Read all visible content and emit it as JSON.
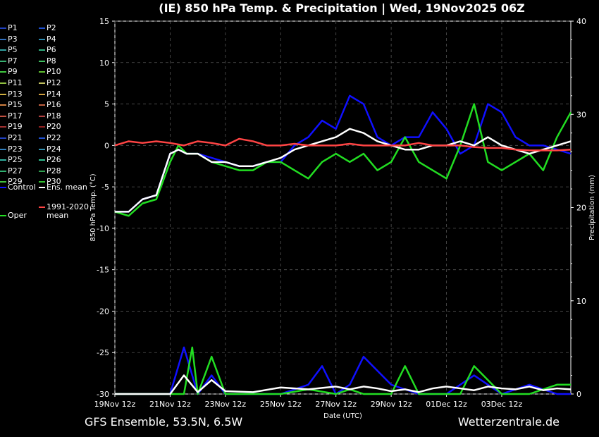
{
  "chart_data": {
    "type": "line",
    "title": "(IE)  850 hPa Temp. & Precipitation | Wed, 19Nov2025 06Z",
    "ylabel": "850 hPa Temp. (°C)",
    "y2label": "Precipitation (mm)",
    "xlabel": "Date (UTC)",
    "ylim": [
      -30,
      15
    ],
    "y2lim": [
      0,
      40
    ],
    "yticks": [
      15,
      10,
      5,
      0,
      -5,
      -10,
      -15,
      -20,
      -25,
      -30
    ],
    "y2ticks": [
      40,
      30,
      20,
      10,
      0
    ],
    "xlim": [
      0,
      16.5
    ],
    "xticks": [
      {
        "x": 0,
        "label": "19Nov 12z"
      },
      {
        "x": 2,
        "label": "21Nov 12z"
      },
      {
        "x": 4,
        "label": "23Nov 12z"
      },
      {
        "x": 6,
        "label": "25Nov 12z"
      },
      {
        "x": 8,
        "label": "27Nov 12z"
      },
      {
        "x": 10,
        "label": "29Nov 12z"
      },
      {
        "x": 12,
        "label": "01Dec 12z"
      },
      {
        "x": 14,
        "label": "03Dec 12z"
      }
    ],
    "grid": true,
    "series": [
      {
        "name": "Control",
        "color": "#1010ff",
        "x": [
          0,
          0.5,
          1,
          1.5,
          2,
          2.3,
          2.6,
          3,
          3.5,
          4,
          4.5,
          5,
          5.5,
          6,
          6.5,
          7,
          7.5,
          8,
          8.5,
          9,
          9.5,
          10,
          10.5,
          11,
          11.5,
          12,
          12.5,
          13,
          13.5,
          14,
          14.5,
          15,
          15.5,
          16,
          16.5
        ],
        "values": [
          -8,
          -8,
          -6.5,
          -6,
          -1,
          -0.5,
          -1,
          -1,
          -1.5,
          -2,
          -2.5,
          -2.5,
          -2,
          -2,
          0,
          1,
          3,
          2,
          6,
          5,
          1,
          0,
          1,
          1,
          4,
          2,
          -1,
          0,
          5,
          4,
          1,
          0,
          0,
          -0.5,
          -1
        ]
      },
      {
        "name": "Oper",
        "color": "#22dd22",
        "x": [
          0,
          0.5,
          1,
          1.5,
          2,
          2.3,
          2.6,
          3,
          3.5,
          4,
          4.5,
          5,
          5.5,
          6,
          6.5,
          7,
          7.5,
          8,
          8.5,
          9,
          9.5,
          10,
          10.5,
          11,
          11.5,
          12,
          12.5,
          13,
          13.5,
          14,
          14.5,
          15,
          15.5,
          16,
          16.5
        ],
        "values": [
          -8,
          -8.5,
          -7,
          -6.5,
          -2,
          0,
          -1,
          -1,
          -2,
          -2.5,
          -3,
          -3,
          -2,
          -2,
          -3,
          -4,
          -2,
          -1,
          -2,
          -1,
          -3,
          -2,
          1,
          -2,
          -3,
          -4,
          0,
          5,
          -2,
          -3,
          -2,
          -1,
          -3,
          1,
          4
        ]
      },
      {
        "name": "Ens. mean",
        "color": "#ffffff",
        "x": [
          0,
          0.5,
          1,
          1.5,
          2,
          2.3,
          2.6,
          3,
          3.5,
          4,
          4.5,
          5,
          5.5,
          6,
          6.5,
          7,
          7.5,
          8,
          8.5,
          9,
          9.5,
          10,
          10.5,
          11,
          11.5,
          12,
          12.5,
          13,
          13.5,
          14,
          14.5,
          15,
          15.5,
          16,
          16.5
        ],
        "values": [
          -8,
          -8,
          -6.5,
          -6,
          -1,
          -0.5,
          -1,
          -1,
          -2,
          -2,
          -2.5,
          -2.5,
          -2,
          -1.5,
          -0.5,
          0,
          0.5,
          1,
          2,
          1.5,
          0.5,
          0,
          -0.5,
          -0.5,
          0,
          0,
          0.5,
          0,
          1,
          0,
          -0.5,
          -1,
          -0.5,
          0,
          0.5
        ]
      },
      {
        "name": "1991-2020 mean",
        "color": "#ff4444",
        "x": [
          0,
          0.5,
          1,
          1.5,
          2,
          2.5,
          3,
          3.5,
          4,
          4.5,
          5,
          5.5,
          6,
          6.5,
          7,
          7.5,
          8,
          8.5,
          9,
          9.5,
          10,
          10.5,
          11,
          11.5,
          12,
          12.5,
          13,
          13.5,
          14,
          14.5,
          15,
          15.5,
          16,
          16.5
        ],
        "values": [
          0,
          0.5,
          0.3,
          0.5,
          0.3,
          0,
          0.5,
          0.3,
          0,
          0.8,
          0.5,
          0,
          0,
          0.2,
          0,
          0,
          0,
          0.2,
          0,
          0,
          0,
          0,
          0.3,
          0,
          0,
          0,
          -0.2,
          -0.3,
          -0.3,
          -0.5,
          -0.6,
          -0.6,
          -0.6,
          -0.5
        ]
      }
    ],
    "precip_series": [
      {
        "name": "Control",
        "color": "#1010ff",
        "x": [
          0,
          2,
          2.5,
          3,
          3.5,
          4,
          6,
          7,
          7.5,
          8,
          8.5,
          9,
          10,
          11,
          12,
          13,
          14,
          15,
          16,
          16.5
        ],
        "values": [
          0,
          0,
          5,
          0,
          2,
          0,
          0,
          1,
          3,
          0,
          1,
          4,
          1,
          0,
          0,
          2,
          0,
          1,
          0,
          0
        ]
      },
      {
        "name": "Oper",
        "color": "#22dd22",
        "x": [
          0,
          2,
          2.5,
          2.8,
          3,
          3.5,
          4,
          6,
          7,
          8,
          8.5,
          9,
          10,
          10.5,
          11,
          12,
          12.5,
          13,
          14,
          15,
          16,
          16.5
        ],
        "values": [
          0,
          0,
          0,
          5,
          0,
          4,
          0,
          0,
          0.5,
          0,
          0.5,
          0,
          0,
          3,
          0,
          0,
          0,
          3,
          0,
          0,
          1,
          1
        ]
      },
      {
        "name": "Ens. mean",
        "color": "#ffffff",
        "x": [
          0,
          2,
          2.5,
          3,
          3.5,
          4,
          5,
          6,
          7,
          8,
          8.5,
          9,
          9.5,
          10,
          10.5,
          11,
          11.5,
          12,
          12.5,
          13,
          13.5,
          14,
          14.5,
          15,
          15.5,
          16,
          16.5
        ],
        "values": [
          0,
          0,
          2,
          0.2,
          1.5,
          0.3,
          0.2,
          0.7,
          0.5,
          0.8,
          0.5,
          0.8,
          0.6,
          0.3,
          0.5,
          0.2,
          0.6,
          0.8,
          0.6,
          0.4,
          0.8,
          0.6,
          0.5,
          0.8,
          0.4,
          0.6,
          0.5
        ]
      }
    ]
  },
  "header": {
    "title": "(IE)  850 hPa Temp. & Precipitation | Wed, 19Nov2025 06Z"
  },
  "legend": {
    "items": [
      {
        "label": "P1",
        "color": "#1f3fbf"
      },
      {
        "label": "P2",
        "color": "#1f4fcf"
      },
      {
        "label": "P3",
        "color": "#3070c0"
      },
      {
        "label": "P4",
        "color": "#2a8ab0"
      },
      {
        "label": "P5",
        "color": "#30a0a0"
      },
      {
        "label": "P6",
        "color": "#30b080"
      },
      {
        "label": "P7",
        "color": "#38b070"
      },
      {
        "label": "P8",
        "color": "#40c060"
      },
      {
        "label": "P9",
        "color": "#40c840"
      },
      {
        "label": "P10",
        "color": "#60c030"
      },
      {
        "label": "P11",
        "color": "#90c040"
      },
      {
        "label": "P12",
        "color": "#c0c060"
      },
      {
        "label": "P13",
        "color": "#d0b040"
      },
      {
        "label": "P14",
        "color": "#d0a040"
      },
      {
        "label": "P15",
        "color": "#d08040"
      },
      {
        "label": "P16",
        "color": "#c06040"
      },
      {
        "label": "P17",
        "color": "#c05040"
      },
      {
        "label": "P18",
        "color": "#b04040"
      },
      {
        "label": "P19",
        "color": "#a03030"
      },
      {
        "label": "P20",
        "color": "#902020"
      },
      {
        "label": "P21",
        "color": "#2040c0"
      },
      {
        "label": "P22",
        "color": "#2050d0"
      },
      {
        "label": "P23",
        "color": "#3080c0"
      },
      {
        "label": "P24",
        "color": "#3090b0"
      },
      {
        "label": "P25",
        "color": "#30b0a0"
      },
      {
        "label": "P26",
        "color": "#30c090"
      },
      {
        "label": "P27",
        "color": "#30b070"
      },
      {
        "label": "P28",
        "color": "#30a050"
      },
      {
        "label": "P29",
        "color": "#40c040"
      },
      {
        "label": "P30",
        "color": "#30c030"
      }
    ],
    "control_label": "Control",
    "ensmean_label": "Ens. mean",
    "clim_label_1": "1991-2020",
    "clim_label_2": "mean",
    "oper_label": "Oper"
  },
  "footer": {
    "left": "GFS Ensemble, 53.5N, 6.5W",
    "right": "Wetterzentrale.de"
  }
}
